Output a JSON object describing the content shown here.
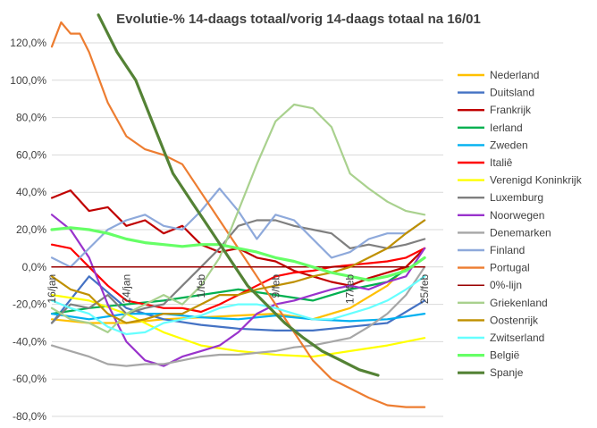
{
  "chart_data": {
    "type": "line",
    "title": "Evolutie-% 14-daags totaal/vorig 14-daags totaal na 16/01",
    "xlabel": "",
    "ylabel": "",
    "x_start": "16/jan",
    "x_end": "25/feb",
    "x_tick_labels": [
      "16/jan",
      "24/jan",
      "1/feb",
      "9/feb",
      "17/feb",
      "25/feb"
    ],
    "x_tick_positions": [
      0,
      8,
      16,
      24,
      32,
      40
    ],
    "ylim": [
      -80,
      120
    ],
    "y_ticks": [
      -80,
      -60,
      -40,
      -20,
      0,
      20,
      40,
      60,
      80,
      100,
      120
    ],
    "y_tick_labels": [
      "-80,0%",
      "-60,0%",
      "-40,0%",
      "-20,0%",
      "0,0%",
      "20,0%",
      "40,0%",
      "60,0%",
      "80,0%",
      "100,0%",
      "120,0%"
    ],
    "grid": "horizontal",
    "legend_position": "right",
    "series": [
      {
        "name": "Nederland",
        "color": "#FFC000",
        "x": [
          0,
          4,
          8,
          12,
          16,
          20,
          24,
          28,
          32,
          36,
          40
        ],
        "values": [
          -28,
          -30,
          -30,
          -28,
          -27,
          -26,
          -25,
          -28,
          -22,
          -10,
          10
        ]
      },
      {
        "name": "Duitsland",
        "color": "#4472C4",
        "x": [
          0,
          4,
          8,
          12,
          16,
          20,
          24,
          28,
          32,
          36,
          40
        ],
        "values": [
          -30,
          -5,
          -22,
          -28,
          -31,
          -33,
          -34,
          -34,
          -32,
          -30,
          -18
        ]
      },
      {
        "name": "Frankrijk",
        "color": "#C00000",
        "x": [
          0,
          2,
          4,
          6,
          8,
          10,
          12,
          14,
          16,
          18,
          20,
          22,
          24,
          26,
          28,
          30,
          32,
          34,
          36,
          38,
          40
        ],
        "values": [
          37,
          41,
          30,
          32,
          22,
          25,
          18,
          22,
          12,
          8,
          10,
          5,
          3,
          -2,
          -5,
          -8,
          -10,
          -6,
          -3,
          0,
          10
        ]
      },
      {
        "name": "Ierland",
        "color": "#00B050",
        "x": [
          0,
          4,
          8,
          12,
          16,
          20,
          24,
          28,
          32,
          36,
          40
        ],
        "values": [
          -25,
          -22,
          -20,
          -18,
          -15,
          -12,
          -15,
          -18,
          -12,
          -8,
          5
        ]
      },
      {
        "name": "Zweden",
        "color": "#00B0F0",
        "x": [
          0,
          4,
          8,
          12,
          16,
          20,
          24,
          28,
          32,
          36,
          40
        ],
        "values": [
          -25,
          -28,
          -25,
          -25,
          -27,
          -28,
          -26,
          -28,
          -29,
          -28,
          -25
        ]
      },
      {
        "name": "Italiê",
        "color": "#FF0000",
        "x": [
          0,
          2,
          4,
          6,
          8,
          10,
          12,
          14,
          16,
          18,
          20,
          22,
          24,
          26,
          28,
          30,
          32,
          34,
          36,
          38,
          40
        ],
        "values": [
          12,
          10,
          0,
          -10,
          -18,
          -20,
          -22,
          -22,
          -24,
          -20,
          -15,
          -10,
          -5,
          -3,
          -2,
          0,
          1,
          2,
          3,
          5,
          10
        ]
      },
      {
        "name": "Verenigd Koninkrijk",
        "color": "#FFFF00",
        "x": [
          0,
          4,
          8,
          12,
          16,
          20,
          24,
          28,
          32,
          36,
          40
        ],
        "values": [
          -15,
          -18,
          -25,
          -35,
          -42,
          -45,
          -47,
          -48,
          -45,
          -42,
          -38
        ]
      },
      {
        "name": "Luxemburg",
        "color": "#7F7F7F",
        "x": [
          0,
          2,
          4,
          6,
          8,
          10,
          12,
          14,
          16,
          18,
          20,
          22,
          24,
          26,
          28,
          30,
          32,
          34,
          36,
          38,
          40
        ],
        "values": [
          -30,
          -20,
          -22,
          -15,
          -25,
          -22,
          -20,
          -10,
          0,
          10,
          22,
          25,
          25,
          22,
          20,
          18,
          10,
          12,
          10,
          12,
          15
        ]
      },
      {
        "name": "Noorwegen",
        "color": "#9933CC",
        "x": [
          0,
          2,
          4,
          6,
          8,
          10,
          12,
          14,
          16,
          18,
          20,
          22,
          24,
          26,
          28,
          30,
          32,
          34,
          36,
          38,
          40
        ],
        "values": [
          28,
          20,
          5,
          -20,
          -40,
          -50,
          -53,
          -48,
          -45,
          -42,
          -35,
          -25,
          -20,
          -18,
          -15,
          -12,
          -10,
          -12,
          -8,
          -5,
          10
        ]
      },
      {
        "name": "Denemarken",
        "color": "#A6A6A6",
        "x": [
          0,
          2,
          4,
          6,
          8,
          10,
          12,
          14,
          16,
          18,
          20,
          22,
          24,
          26,
          28,
          30,
          32,
          34,
          36,
          38,
          40
        ],
        "values": [
          -42,
          -45,
          -48,
          -52,
          -53,
          -52,
          -52,
          -50,
          -48,
          -47,
          -47,
          -46,
          -45,
          -43,
          -42,
          -40,
          -38,
          -32,
          -25,
          -15,
          0
        ]
      },
      {
        "name": "Finland",
        "color": "#8EA9DB",
        "x": [
          0,
          2,
          4,
          6,
          8,
          10,
          12,
          14,
          16,
          18,
          20,
          22,
          24,
          26,
          28,
          30,
          32,
          34,
          36,
          38,
          40
        ],
        "values": [
          5,
          0,
          10,
          20,
          25,
          28,
          22,
          20,
          30,
          42,
          30,
          15,
          28,
          25,
          15,
          5,
          8,
          15,
          18,
          18,
          25
        ]
      },
      {
        "name": "Portugal",
        "color": "#ED7D31",
        "x": [
          0,
          1,
          2,
          3,
          4,
          6,
          8,
          10,
          12,
          14,
          16,
          18,
          20,
          22,
          24,
          26,
          28,
          30,
          32,
          34,
          36,
          38,
          40
        ],
        "values": [
          118,
          131,
          125,
          125,
          115,
          88,
          70,
          63,
          60,
          55,
          40,
          25,
          10,
          -5,
          -20,
          -35,
          -50,
          -60,
          -65,
          -70,
          -74,
          -75,
          -75
        ]
      },
      {
        "name": "0%-lijn",
        "color": "#990000",
        "x": [
          0,
          40
        ],
        "values": [
          0,
          0
        ]
      },
      {
        "name": "Griekenland",
        "color": "#A9D18E",
        "x": [
          0,
          2,
          4,
          6,
          8,
          10,
          12,
          14,
          16,
          18,
          20,
          22,
          24,
          26,
          28,
          30,
          32,
          34,
          36,
          38,
          40
        ],
        "values": [
          -22,
          -28,
          -30,
          -35,
          -25,
          -20,
          -15,
          -20,
          -10,
          5,
          30,
          55,
          78,
          87,
          85,
          75,
          50,
          42,
          35,
          30,
          28
        ]
      },
      {
        "name": "Oostenrijk",
        "color": "#BF9000",
        "x": [
          0,
          2,
          4,
          6,
          8,
          10,
          12,
          14,
          16,
          18,
          20,
          22,
          24,
          26,
          28,
          30,
          32,
          34,
          36,
          38,
          40
        ],
        "values": [
          -5,
          -12,
          -15,
          -25,
          -30,
          -28,
          -25,
          -25,
          -20,
          -15,
          -15,
          -12,
          -10,
          -8,
          -5,
          -3,
          0,
          5,
          10,
          18,
          25
        ]
      },
      {
        "name": "Zwitserland",
        "color": "#66FFFF",
        "x": [
          0,
          2,
          4,
          6,
          8,
          10,
          12,
          14,
          16,
          18,
          20,
          22,
          24,
          26,
          28,
          30,
          32,
          34,
          36,
          38,
          40
        ],
        "values": [
          -18,
          -22,
          -25,
          -32,
          -36,
          -35,
          -30,
          -28,
          -26,
          -22,
          -20,
          -20,
          -22,
          -25,
          -28,
          -28,
          -25,
          -22,
          -18,
          -12,
          -5
        ]
      },
      {
        "name": "België",
        "color": "#66FF66",
        "x": [
          0,
          2,
          4,
          6,
          8,
          10,
          12,
          14,
          16,
          18,
          20,
          22,
          24,
          26,
          28,
          30,
          32,
          34,
          36,
          38,
          40
        ],
        "values": [
          20,
          21,
          20,
          18,
          15,
          13,
          12,
          11,
          12,
          12,
          10,
          8,
          5,
          3,
          0,
          -3,
          -5,
          -7,
          -5,
          -2,
          5
        ]
      },
      {
        "name": "Spanje",
        "color": "#548235",
        "x": [
          5,
          7,
          9,
          11,
          13,
          15,
          17,
          19,
          21,
          23,
          25,
          27,
          29,
          31,
          33,
          35
        ],
        "values": [
          135,
          115,
          100,
          75,
          50,
          35,
          20,
          5,
          -10,
          -20,
          -30,
          -38,
          -45,
          -50,
          -55,
          -58
        ]
      }
    ]
  }
}
